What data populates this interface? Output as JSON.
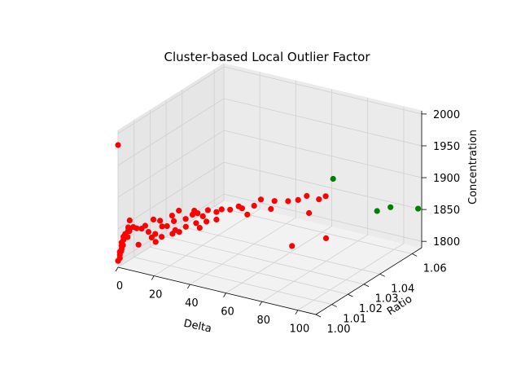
{
  "chart_data": {
    "type": "scatter",
    "title": "Cluster-based Local Outlier Factor",
    "xlabel": "Delta",
    "ylabel": "Ratio",
    "zlabel": "Concentration",
    "x_ticks": [
      "0",
      "20",
      "40",
      "60",
      "80",
      "100"
    ],
    "y_ticks": [
      "1.00",
      "1.01",
      "1.02",
      "1.03",
      "1.04",
      "1.06"
    ],
    "z_ticks": [
      "1800",
      "1850",
      "1900",
      "1950",
      "2000"
    ],
    "grid": true,
    "legend": "none",
    "colors": {
      "inlier": "#ff0000",
      "outlier": "#008000",
      "pane": "#f2f2f2",
      "grid": "#d0d0d0"
    },
    "series": [
      {
        "values": [
          [
            0,
            1.0,
            1982
          ],
          [
            0,
            1.0,
            1800
          ],
          [
            1,
            1.0,
            1805
          ],
          [
            1,
            1.0,
            1810
          ],
          [
            1,
            1.0,
            1815
          ],
          [
            2,
            1.0,
            1820
          ],
          [
            2,
            1.0,
            1825
          ],
          [
            2,
            1.0,
            1830
          ],
          [
            3,
            1.0,
            1835
          ],
          [
            3,
            1.0,
            1840
          ],
          [
            4,
            1.0,
            1845
          ],
          [
            0,
            1.002,
            1812
          ],
          [
            1,
            1.002,
            1822
          ],
          [
            1,
            1.004,
            1832
          ],
          [
            2,
            1.004,
            1842
          ],
          [
            0,
            1.006,
            1828
          ],
          [
            1,
            1.006,
            1838
          ],
          [
            3,
            1.003,
            1850
          ],
          [
            2,
            1.005,
            1857
          ],
          [
            4,
            1.005,
            1848
          ],
          [
            5,
            1.006,
            1845
          ],
          [
            6,
            1.008,
            1842
          ],
          [
            8,
            1.01,
            1835
          ],
          [
            10,
            1.012,
            1830
          ],
          [
            12,
            1.014,
            1840
          ],
          [
            8,
            1.008,
            1848
          ],
          [
            9,
            1.012,
            1852
          ],
          [
            10,
            1.015,
            1846
          ],
          [
            13,
            1.016,
            1838
          ],
          [
            15,
            1.018,
            1844
          ],
          [
            14,
            1.018,
            1852
          ],
          [
            16,
            1.02,
            1858
          ],
          [
            18,
            1.022,
            1843
          ],
          [
            20,
            1.024,
            1848
          ],
          [
            21,
            1.024,
            1855
          ],
          [
            22,
            1.025,
            1850
          ],
          [
            24,
            1.026,
            1845
          ],
          [
            25,
            1.028,
            1852
          ],
          [
            28,
            1.03,
            1848
          ],
          [
            30,
            1.031,
            1852
          ],
          [
            26,
            1.026,
            1838
          ],
          [
            19,
            1.021,
            1833
          ],
          [
            16,
            1.016,
            1828
          ],
          [
            12,
            1.01,
            1822
          ],
          [
            18,
            1.018,
            1829
          ],
          [
            22,
            1.024,
            1836
          ],
          [
            32,
            1.034,
            1848
          ],
          [
            35,
            1.036,
            1852
          ],
          [
            36,
            1.037,
            1848
          ],
          [
            40,
            1.04,
            1850
          ],
          [
            42,
            1.042,
            1858
          ],
          [
            46,
            1.046,
            1852
          ],
          [
            50,
            1.05,
            1848
          ],
          [
            52,
            1.054,
            1845
          ],
          [
            55,
            1.056,
            1850
          ],
          [
            60,
            1.058,
            1845
          ],
          [
            62,
            1.06,
            1848
          ],
          [
            6,
            1.006,
            1820
          ],
          [
            8,
            1.012,
            1823
          ],
          [
            10,
            1.016,
            1819
          ],
          [
            14,
            1.02,
            1826
          ],
          [
            24,
            1.024,
            1830
          ],
          [
            28,
            1.03,
            1836
          ],
          [
            38,
            1.038,
            1838
          ],
          [
            44,
            1.046,
            1838
          ],
          [
            70,
            1.03,
            1823
          ],
          [
            80,
            1.04,
            1826
          ],
          [
            75,
            1.035,
            1870
          ]
        ]
      },
      {
        "values": [
          [
            75,
            1.05,
            1900
          ],
          [
            95,
            1.055,
            1855
          ],
          [
            98,
            1.06,
            1855
          ],
          [
            108,
            1.066,
            1850
          ]
        ]
      }
    ],
    "xlim": [
      0,
      110
    ],
    "ylim": [
      1.0,
      1.066
    ],
    "zlim": [
      1790,
      2005
    ]
  }
}
